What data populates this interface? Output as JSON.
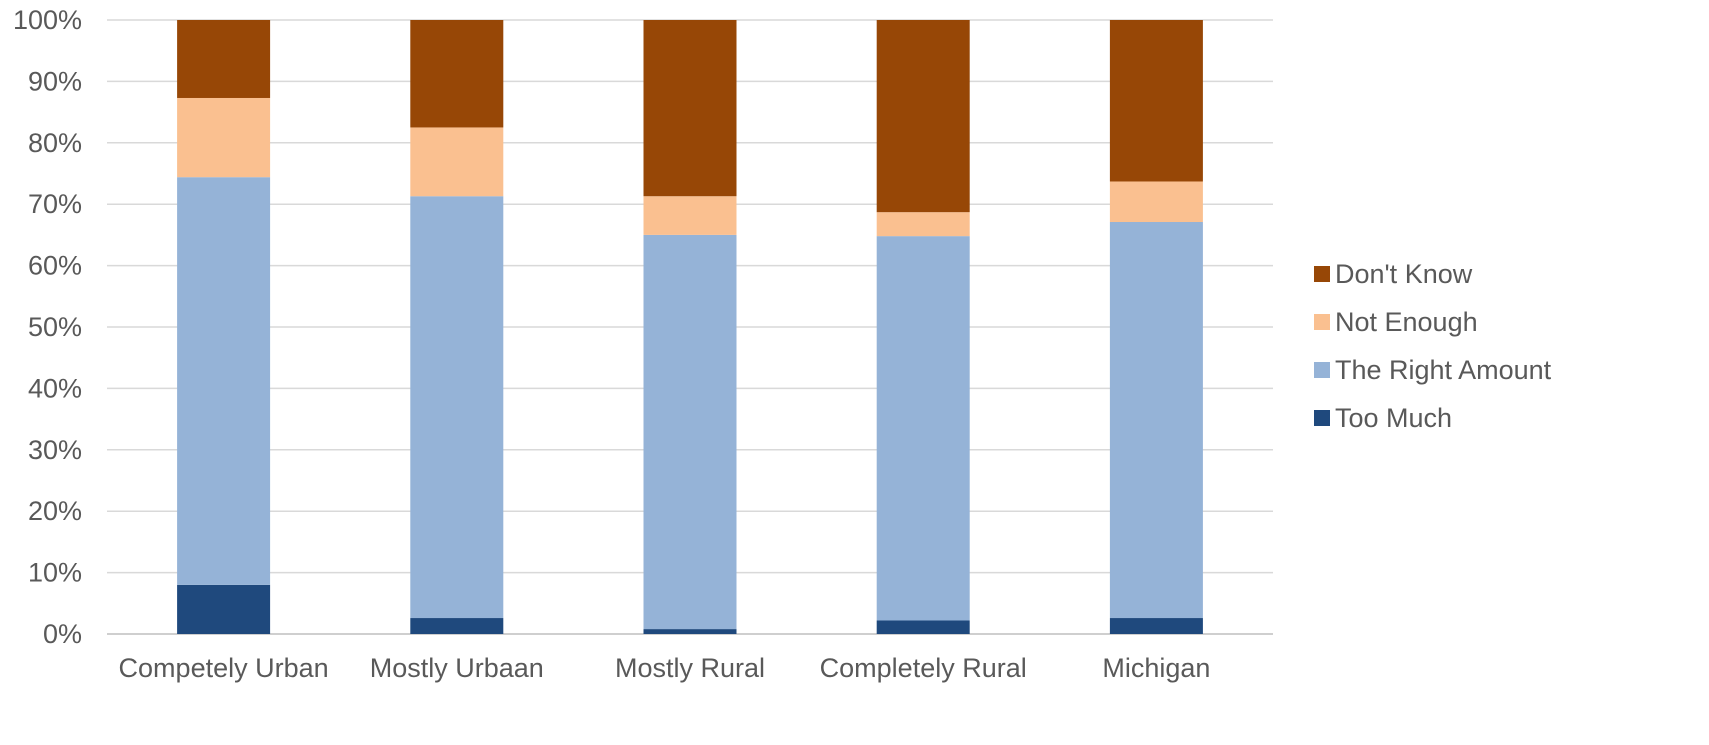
{
  "chart_data": {
    "type": "bar",
    "stacked": true,
    "orientation": "vertical",
    "categories": [
      "Competely Urban",
      "Mostly Urbaan",
      "Mostly Rural",
      "Completely Rural",
      "Michigan"
    ],
    "series": [
      {
        "name": "Too Much",
        "color": "#1f497d",
        "values": [
          8.0,
          2.6,
          0.8,
          2.2,
          2.6
        ]
      },
      {
        "name": "The Right Amount",
        "color": "#95b3d7",
        "values": [
          66.4,
          68.7,
          64.2,
          62.6,
          64.5
        ]
      },
      {
        "name": "Not Enough",
        "color": "#fac090",
        "values": [
          12.9,
          11.2,
          6.3,
          3.9,
          6.6
        ]
      },
      {
        "name": "Don't Know",
        "color": "#974706",
        "values": [
          12.7,
          17.5,
          28.7,
          31.3,
          26.3
        ]
      }
    ],
    "y_ticks": [
      "0%",
      "10%",
      "20%",
      "30%",
      "40%",
      "50%",
      "60%",
      "70%",
      "80%",
      "90%",
      "100%"
    ],
    "ylim": [
      0,
      100
    ],
    "grid": true,
    "legend_position": "right",
    "legend_order": [
      "Don't Know",
      "Not Enough",
      "The Right Amount",
      "Too Much"
    ],
    "title": "",
    "xlabel": "",
    "ylabel": ""
  }
}
